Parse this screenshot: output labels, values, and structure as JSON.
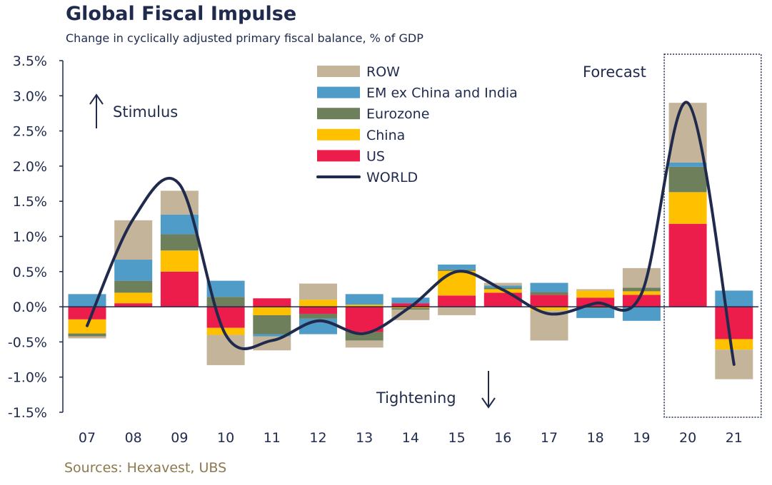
{
  "title": "Global Fiscal Impulse",
  "subtitle": "Change in cyclically adjusted primary fiscal balance, % of GDP",
  "source": "Sources: Hexavest, UBS",
  "annotations": {
    "stimulus": "Stimulus",
    "tightening": "Tightening",
    "forecast": "Forecast"
  },
  "colors": {
    "ROW": "#c4b49a",
    "EM ex China and India": "#4f9cc8",
    "Eurozone": "#6e7f5c",
    "China": "#ffc000",
    "US": "#ec1c4b",
    "WORLD": "#1f2a4d"
  },
  "chart_data": {
    "type": "bar",
    "stacked": true,
    "title": "Global Fiscal Impulse",
    "subtitle": "Change in cyclically adjusted primary fiscal balance, % of GDP",
    "categories": [
      "07",
      "08",
      "09",
      "10",
      "11",
      "12",
      "13",
      "14",
      "15",
      "16",
      "17",
      "18",
      "19",
      "20",
      "21"
    ],
    "ylim": [
      -1.5,
      3.5
    ],
    "yticks": [
      "-1.5%",
      "-1.0%",
      "-0.5%",
      "0.0%",
      "0.5%",
      "1.0%",
      "1.5%",
      "2.0%",
      "2.5%",
      "3.0%",
      "3.5%"
    ],
    "ytick_values": [
      -1.5,
      -1.0,
      -0.5,
      0.0,
      0.5,
      1.0,
      1.5,
      2.0,
      2.5,
      3.0,
      3.5
    ],
    "legend_position": "top-center",
    "forecast_categories": [
      "20",
      "21"
    ],
    "series": [
      {
        "name": "US",
        "values": [
          -0.18,
          0.05,
          0.5,
          -0.3,
          0.12,
          -0.1,
          -0.36,
          0.05,
          0.16,
          0.2,
          0.17,
          0.13,
          0.17,
          1.18,
          -0.46
        ]
      },
      {
        "name": "China",
        "values": [
          -0.2,
          0.15,
          0.3,
          -0.1,
          -0.12,
          0.1,
          0.03,
          -0.02,
          0.35,
          0.05,
          -0.05,
          0.1,
          0.05,
          0.45,
          -0.15
        ]
      },
      {
        "name": "Eurozone",
        "values": [
          -0.04,
          0.17,
          0.23,
          0.14,
          -0.27,
          -0.07,
          -0.12,
          -0.02,
          0.02,
          0.02,
          0.04,
          -0.02,
          0.05,
          0.36,
          0.0
        ]
      },
      {
        "name": "EM ex China and India",
        "values": [
          0.18,
          0.3,
          0.28,
          0.23,
          -0.03,
          -0.22,
          0.15,
          0.08,
          0.07,
          0.03,
          0.13,
          -0.14,
          -0.2,
          0.06,
          0.23
        ]
      },
      {
        "name": "ROW",
        "values": [
          -0.03,
          0.56,
          0.34,
          -0.43,
          -0.2,
          0.23,
          -0.1,
          -0.15,
          -0.12,
          0.04,
          -0.43,
          0.02,
          0.28,
          0.85,
          -0.42
        ]
      }
    ],
    "line": {
      "name": "WORLD",
      "values": [
        -0.27,
        1.25,
        1.74,
        -0.4,
        -0.48,
        -0.2,
        -0.38,
        0.0,
        0.5,
        0.24,
        -0.1,
        0.05,
        0.19,
        2.9,
        -0.82
      ]
    }
  }
}
